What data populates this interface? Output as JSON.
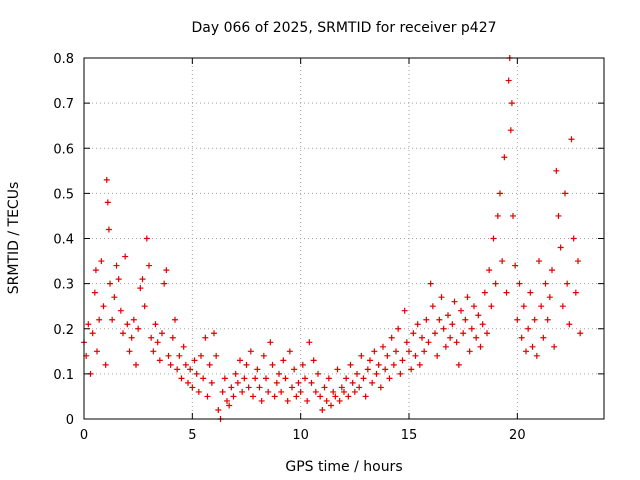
{
  "chart_data": {
    "type": "scatter",
    "title": "Day 066 of 2025, SRMTID for receiver p427",
    "xlabel": "GPS time / hours",
    "ylabel": "SRMTID / TECUs",
    "xlim": [
      0,
      24
    ],
    "ylim": [
      0,
      0.8
    ],
    "xticks": [
      0,
      5,
      10,
      15,
      20
    ],
    "xtick_labels": [
      "0",
      "5",
      "10",
      "15",
      "20"
    ],
    "yticks": [
      0,
      0.1,
      0.2,
      0.3,
      0.4,
      0.5,
      0.6,
      0.7,
      0.8
    ],
    "ytick_labels": [
      "0",
      "0.1",
      "0.2",
      "0.3",
      "0.4",
      "0.5",
      "0.6",
      "0.7",
      "0.8"
    ],
    "grid": true,
    "marker": "+",
    "color": "#e00000",
    "series": [
      {
        "name": "SRMTID",
        "points": [
          [
            0.0,
            0.17
          ],
          [
            0.1,
            0.14
          ],
          [
            0.2,
            0.21
          ],
          [
            0.3,
            0.1
          ],
          [
            0.4,
            0.19
          ],
          [
            0.5,
            0.28
          ],
          [
            0.55,
            0.33
          ],
          [
            0.6,
            0.15
          ],
          [
            0.7,
            0.22
          ],
          [
            0.8,
            0.35
          ],
          [
            0.9,
            0.25
          ],
          [
            1.0,
            0.12
          ],
          [
            1.05,
            0.53
          ],
          [
            1.1,
            0.48
          ],
          [
            1.15,
            0.42
          ],
          [
            1.2,
            0.3
          ],
          [
            1.3,
            0.22
          ],
          [
            1.4,
            0.27
          ],
          [
            1.5,
            0.34
          ],
          [
            1.6,
            0.31
          ],
          [
            1.7,
            0.24
          ],
          [
            1.8,
            0.19
          ],
          [
            1.9,
            0.36
          ],
          [
            2.0,
            0.21
          ],
          [
            2.1,
            0.15
          ],
          [
            2.2,
            0.18
          ],
          [
            2.3,
            0.22
          ],
          [
            2.4,
            0.12
          ],
          [
            2.5,
            0.2
          ],
          [
            2.6,
            0.29
          ],
          [
            2.7,
            0.31
          ],
          [
            2.8,
            0.25
          ],
          [
            2.9,
            0.4
          ],
          [
            3.0,
            0.34
          ],
          [
            3.1,
            0.18
          ],
          [
            3.2,
            0.15
          ],
          [
            3.3,
            0.21
          ],
          [
            3.4,
            0.17
          ],
          [
            3.5,
            0.13
          ],
          [
            3.6,
            0.19
          ],
          [
            3.7,
            0.3
          ],
          [
            3.8,
            0.33
          ],
          [
            3.9,
            0.14
          ],
          [
            4.0,
            0.12
          ],
          [
            4.1,
            0.18
          ],
          [
            4.2,
            0.22
          ],
          [
            4.3,
            0.11
          ],
          [
            4.4,
            0.14
          ],
          [
            4.5,
            0.09
          ],
          [
            4.6,
            0.16
          ],
          [
            4.7,
            0.12
          ],
          [
            4.8,
            0.08
          ],
          [
            4.9,
            0.11
          ],
          [
            5.0,
            0.07
          ],
          [
            5.1,
            0.13
          ],
          [
            5.2,
            0.1
          ],
          [
            5.3,
            0.06
          ],
          [
            5.4,
            0.14
          ],
          [
            5.5,
            0.09
          ],
          [
            5.6,
            0.18
          ],
          [
            5.7,
            0.05
          ],
          [
            5.8,
            0.12
          ],
          [
            5.9,
            0.08
          ],
          [
            6.0,
            0.19
          ],
          [
            6.1,
            0.14
          ],
          [
            6.2,
            0.02
          ],
          [
            6.3,
            0.0
          ],
          [
            6.4,
            0.06
          ],
          [
            6.5,
            0.09
          ],
          [
            6.6,
            0.04
          ],
          [
            6.7,
            0.03
          ],
          [
            6.8,
            0.07
          ],
          [
            6.9,
            0.05
          ],
          [
            7.0,
            0.1
          ],
          [
            7.1,
            0.08
          ],
          [
            7.2,
            0.13
          ],
          [
            7.3,
            0.06
          ],
          [
            7.4,
            0.09
          ],
          [
            7.5,
            0.12
          ],
          [
            7.6,
            0.07
          ],
          [
            7.7,
            0.15
          ],
          [
            7.8,
            0.05
          ],
          [
            7.9,
            0.09
          ],
          [
            8.0,
            0.11
          ],
          [
            8.1,
            0.07
          ],
          [
            8.2,
            0.04
          ],
          [
            8.3,
            0.14
          ],
          [
            8.4,
            0.09
          ],
          [
            8.5,
            0.06
          ],
          [
            8.6,
            0.17
          ],
          [
            8.7,
            0.12
          ],
          [
            8.8,
            0.05
          ],
          [
            8.9,
            0.08
          ],
          [
            9.0,
            0.1
          ],
          [
            9.1,
            0.06
          ],
          [
            9.2,
            0.13
          ],
          [
            9.3,
            0.09
          ],
          [
            9.4,
            0.04
          ],
          [
            9.5,
            0.15
          ],
          [
            9.6,
            0.07
          ],
          [
            9.7,
            0.11
          ],
          [
            9.8,
            0.05
          ],
          [
            9.9,
            0.08
          ],
          [
            10.0,
            0.06
          ],
          [
            10.1,
            0.12
          ],
          [
            10.2,
            0.09
          ],
          [
            10.3,
            0.04
          ],
          [
            10.4,
            0.17
          ],
          [
            10.5,
            0.08
          ],
          [
            10.6,
            0.13
          ],
          [
            10.7,
            0.06
          ],
          [
            10.8,
            0.1
          ],
          [
            10.9,
            0.05
          ],
          [
            11.0,
            0.02
          ],
          [
            11.1,
            0.07
          ],
          [
            11.2,
            0.04
          ],
          [
            11.3,
            0.09
          ],
          [
            11.4,
            0.03
          ],
          [
            11.5,
            0.06
          ],
          [
            11.6,
            0.05
          ],
          [
            11.7,
            0.11
          ],
          [
            11.8,
            0.04
          ],
          [
            11.9,
            0.07
          ],
          [
            12.0,
            0.06
          ],
          [
            12.1,
            0.09
          ],
          [
            12.2,
            0.05
          ],
          [
            12.3,
            0.12
          ],
          [
            12.4,
            0.08
          ],
          [
            12.5,
            0.06
          ],
          [
            12.6,
            0.1
          ],
          [
            12.7,
            0.07
          ],
          [
            12.8,
            0.14
          ],
          [
            12.9,
            0.09
          ],
          [
            13.0,
            0.05
          ],
          [
            13.1,
            0.11
          ],
          [
            13.2,
            0.13
          ],
          [
            13.3,
            0.08
          ],
          [
            13.4,
            0.15
          ],
          [
            13.5,
            0.1
          ],
          [
            13.6,
            0.12
          ],
          [
            13.7,
            0.07
          ],
          [
            13.8,
            0.16
          ],
          [
            13.9,
            0.11
          ],
          [
            14.0,
            0.14
          ],
          [
            14.1,
            0.09
          ],
          [
            14.2,
            0.18
          ],
          [
            14.3,
            0.12
          ],
          [
            14.4,
            0.15
          ],
          [
            14.5,
            0.2
          ],
          [
            14.6,
            0.1
          ],
          [
            14.7,
            0.13
          ],
          [
            14.8,
            0.24
          ],
          [
            14.9,
            0.17
          ],
          [
            15.0,
            0.15
          ],
          [
            15.1,
            0.11
          ],
          [
            15.2,
            0.19
          ],
          [
            15.3,
            0.14
          ],
          [
            15.4,
            0.21
          ],
          [
            15.5,
            0.12
          ],
          [
            15.6,
            0.18
          ],
          [
            15.7,
            0.15
          ],
          [
            15.8,
            0.22
          ],
          [
            15.9,
            0.17
          ],
          [
            16.0,
            0.3
          ],
          [
            16.1,
            0.25
          ],
          [
            16.2,
            0.19
          ],
          [
            16.3,
            0.14
          ],
          [
            16.4,
            0.22
          ],
          [
            16.5,
            0.27
          ],
          [
            16.6,
            0.2
          ],
          [
            16.7,
            0.16
          ],
          [
            16.8,
            0.23
          ],
          [
            16.9,
            0.18
          ],
          [
            17.0,
            0.21
          ],
          [
            17.1,
            0.26
          ],
          [
            17.2,
            0.17
          ],
          [
            17.3,
            0.12
          ],
          [
            17.4,
            0.24
          ],
          [
            17.5,
            0.19
          ],
          [
            17.6,
            0.22
          ],
          [
            17.7,
            0.27
          ],
          [
            17.8,
            0.15
          ],
          [
            17.9,
            0.2
          ],
          [
            18.0,
            0.25
          ],
          [
            18.1,
            0.18
          ],
          [
            18.2,
            0.23
          ],
          [
            18.3,
            0.16
          ],
          [
            18.4,
            0.21
          ],
          [
            18.5,
            0.28
          ],
          [
            18.6,
            0.19
          ],
          [
            18.7,
            0.33
          ],
          [
            18.8,
            0.25
          ],
          [
            18.9,
            0.4
          ],
          [
            19.0,
            0.3
          ],
          [
            19.1,
            0.45
          ],
          [
            19.2,
            0.5
          ],
          [
            19.3,
            0.35
          ],
          [
            19.4,
            0.58
          ],
          [
            19.5,
            0.28
          ],
          [
            19.6,
            0.75
          ],
          [
            19.65,
            0.8
          ],
          [
            19.7,
            0.64
          ],
          [
            19.75,
            0.7
          ],
          [
            19.8,
            0.45
          ],
          [
            19.9,
            0.34
          ],
          [
            20.0,
            0.22
          ],
          [
            20.1,
            0.3
          ],
          [
            20.2,
            0.18
          ],
          [
            20.3,
            0.25
          ],
          [
            20.4,
            0.15
          ],
          [
            20.5,
            0.2
          ],
          [
            20.6,
            0.28
          ],
          [
            20.7,
            0.16
          ],
          [
            20.8,
            0.22
          ],
          [
            20.9,
            0.14
          ],
          [
            21.0,
            0.35
          ],
          [
            21.1,
            0.25
          ],
          [
            21.2,
            0.18
          ],
          [
            21.3,
            0.3
          ],
          [
            21.4,
            0.22
          ],
          [
            21.5,
            0.27
          ],
          [
            21.6,
            0.33
          ],
          [
            21.7,
            0.16
          ],
          [
            21.8,
            0.55
          ],
          [
            21.9,
            0.45
          ],
          [
            22.0,
            0.38
          ],
          [
            22.1,
            0.25
          ],
          [
            22.2,
            0.5
          ],
          [
            22.3,
            0.3
          ],
          [
            22.4,
            0.21
          ],
          [
            22.5,
            0.62
          ],
          [
            22.6,
            0.4
          ],
          [
            22.7,
            0.28
          ],
          [
            22.8,
            0.35
          ],
          [
            22.9,
            0.19
          ]
        ]
      }
    ]
  }
}
